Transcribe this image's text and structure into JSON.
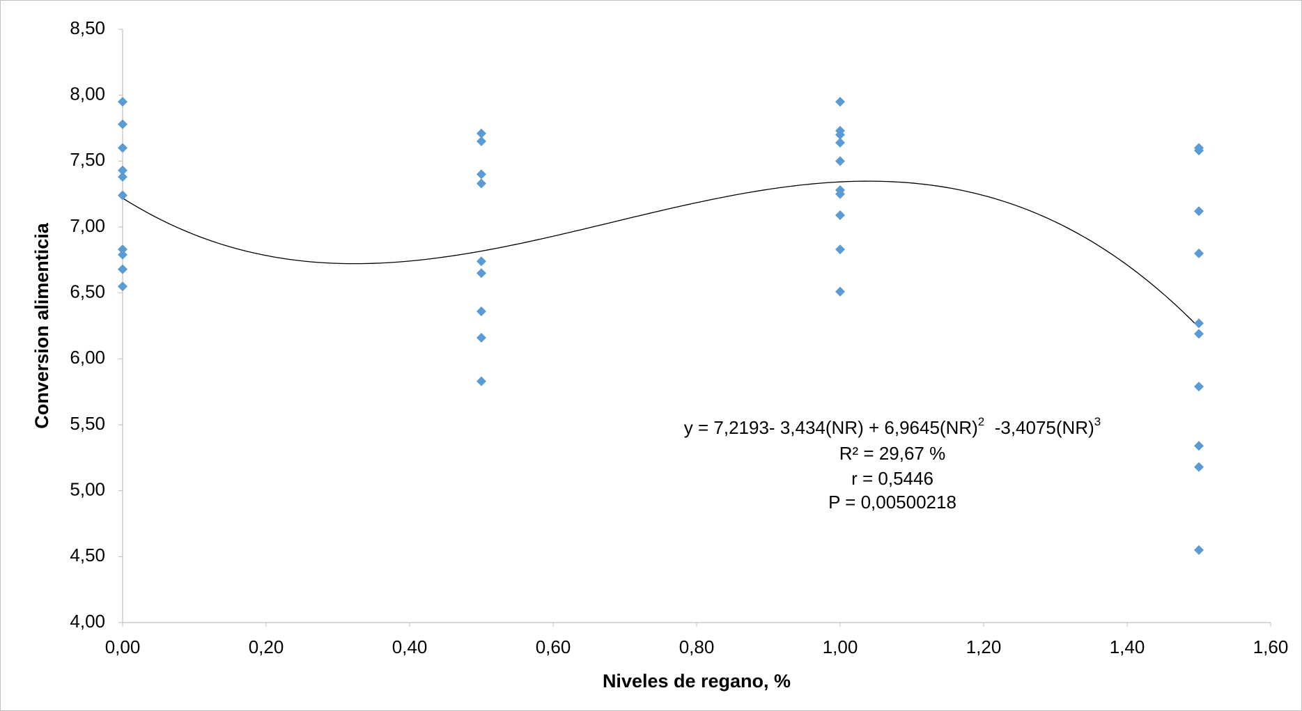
{
  "chart_data": {
    "type": "scatter",
    "x_label": "Niveles de regano, %",
    "y_label": "Conversion alimenticia",
    "xlim": [
      0,
      1.6
    ],
    "ylim": [
      4,
      8.5
    ],
    "xticks": [
      {
        "value": 0,
        "label": "0,00"
      },
      {
        "value": 0.2,
        "label": "0,20"
      },
      {
        "value": 0.4,
        "label": "0,40"
      },
      {
        "value": 0.6,
        "label": "0,60"
      },
      {
        "value": 0.8,
        "label": "0,80"
      },
      {
        "value": 1,
        "label": "1,00"
      },
      {
        "value": 1.2,
        "label": "1,20"
      },
      {
        "value": 1.4,
        "label": "1,40"
      },
      {
        "value": 1.6,
        "label": "1,60"
      }
    ],
    "yticks": [
      {
        "value": 4,
        "label": "4,00"
      },
      {
        "value": 4.5,
        "label": "4,50"
      },
      {
        "value": 5,
        "label": "5,00"
      },
      {
        "value": 5.5,
        "label": "5,50"
      },
      {
        "value": 6,
        "label": "6,00"
      },
      {
        "value": 6.5,
        "label": "6,50"
      },
      {
        "value": 7,
        "label": "7,00"
      },
      {
        "value": 7.5,
        "label": "7,50"
      },
      {
        "value": 8,
        "label": "8,00"
      },
      {
        "value": 8.5,
        "label": "8,50"
      }
    ],
    "color": "#5b9bd5",
    "x": [
      0,
      0,
      0,
      0,
      0,
      0,
      0,
      0,
      0,
      0,
      0.5,
      0.5,
      0.5,
      0.5,
      0.5,
      0.5,
      0.5,
      0.5,
      0.5,
      1,
      1,
      1,
      1,
      1,
      1,
      1,
      1,
      1,
      1,
      1.5,
      1.5,
      1.5,
      1.5,
      1.5,
      1.5,
      1.5,
      1.5,
      1.5,
      1.5
    ],
    "values": [
      7.95,
      7.78,
      7.6,
      7.43,
      7.38,
      7.24,
      6.83,
      6.79,
      6.68,
      6.55,
      7.71,
      7.65,
      7.4,
      7.33,
      6.74,
      6.65,
      6.36,
      6.16,
      5.83,
      7.95,
      7.73,
      7.7,
      7.64,
      7.5,
      7.28,
      7.25,
      7.09,
      6.83,
      6.51,
      7.6,
      7.58,
      7.12,
      6.8,
      6.27,
      6.19,
      5.79,
      5.34,
      5.18,
      4.55
    ],
    "trendline": {
      "type": "polynomial",
      "coefficients": [
        7.2193,
        -3.434,
        6.9645,
        -3.4075
      ],
      "color": "#000000"
    },
    "annotation": {
      "equation": [
        "y = 7,2193- 3,434(NR) + 6,9645(NR)",
        "2",
        "  -3,4075(NR)",
        "3"
      ],
      "lines": [
        "R² = 29,67 %",
        "r = 0,5446",
        "P = 0,00500218"
      ]
    }
  }
}
